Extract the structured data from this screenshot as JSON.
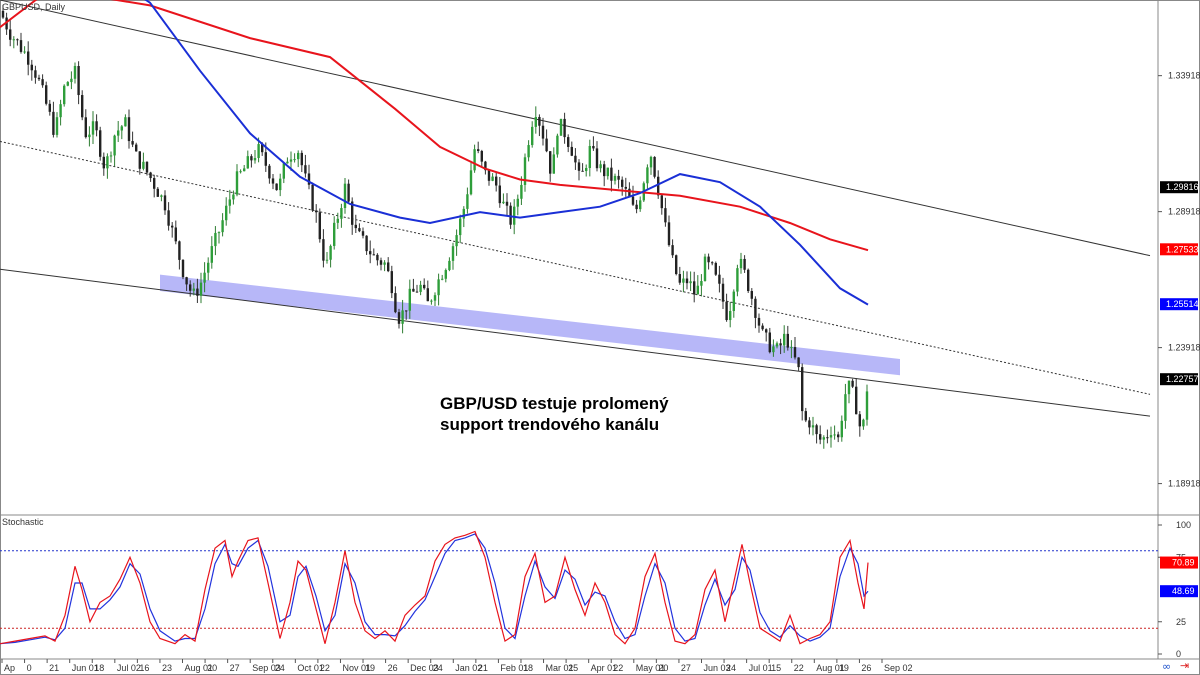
{
  "chart_data": {
    "type": "candlestick",
    "title": "GBPUSD, Daily",
    "annotation": [
      "GBP/USD testuje prolomený",
      "support trendového kanálu"
    ],
    "y_ticks": [
      1.33918,
      1.28918,
      1.23918,
      1.18918
    ],
    "price_badges": [
      {
        "value": "1.29816",
        "color": "#000000"
      },
      {
        "value": "1.27533",
        "color": "#ff0000"
      },
      {
        "value": "1.25514",
        "color": "#0000ff"
      },
      {
        "value": "1.22757",
        "color": "#000000"
      }
    ],
    "x_labels": [
      "Ap",
      "0",
      "21",
      "Jun 01",
      "18",
      "Jul 02",
      "16",
      "23",
      "Aug 01",
      "20",
      "27",
      "Sep 03",
      "24",
      "Oct 01",
      "22",
      "Nov 01",
      "19",
      "26",
      "Dec 03",
      "24",
      "Jan 02",
      "21",
      "Feb 01",
      "18",
      "Mar 01",
      "25",
      "Apr 01",
      "22",
      "May 01",
      "20",
      "27",
      "Jun 03",
      "24",
      "Jul 01",
      "15",
      "22",
      "Aug 01",
      "19",
      "26",
      "Sep 02"
    ],
    "close_path": [
      [
        0,
        1.363
      ],
      [
        10,
        1.355
      ],
      [
        20,
        1.35
      ],
      [
        30,
        1.345
      ],
      [
        38,
        1.338
      ],
      [
        45,
        1.33
      ],
      [
        55,
        1.318
      ],
      [
        65,
        1.336
      ],
      [
        75,
        1.34
      ],
      [
        85,
        1.318
      ],
      [
        95,
        1.32
      ],
      [
        105,
        1.305
      ],
      [
        115,
        1.318
      ],
      [
        125,
        1.322
      ],
      [
        135,
        1.31
      ],
      [
        150,
        1.302
      ],
      [
        165,
        1.292
      ],
      [
        175,
        1.278
      ],
      [
        185,
        1.265
      ],
      [
        193,
        1.258
      ],
      [
        200,
        1.262
      ],
      [
        212,
        1.275
      ],
      [
        222,
        1.285
      ],
      [
        235,
        1.3
      ],
      [
        250,
        1.308
      ],
      [
        258,
        1.312
      ],
      [
        268,
        1.305
      ],
      [
        278,
        1.297
      ],
      [
        288,
        1.31
      ],
      [
        298,
        1.312
      ],
      [
        306,
        1.3
      ],
      [
        316,
        1.288
      ],
      [
        326,
        1.268
      ],
      [
        334,
        1.282
      ],
      [
        345,
        1.298
      ],
      [
        355,
        1.282
      ],
      [
        365,
        1.277
      ],
      [
        375,
        1.272
      ],
      [
        385,
        1.27
      ],
      [
        392,
        1.262
      ],
      [
        398,
        1.25
      ],
      [
        403,
        1.252
      ],
      [
        410,
        1.258
      ],
      [
        420,
        1.262
      ],
      [
        428,
        1.255
      ],
      [
        436,
        1.262
      ],
      [
        446,
        1.27
      ],
      [
        456,
        1.28
      ],
      [
        465,
        1.292
      ],
      [
        475,
        1.313
      ],
      [
        485,
        1.303
      ],
      [
        495,
        1.3
      ],
      [
        505,
        1.29
      ],
      [
        512,
        1.285
      ],
      [
        520,
        1.298
      ],
      [
        528,
        1.315
      ],
      [
        535,
        1.328
      ],
      [
        545,
        1.315
      ],
      [
        552,
        1.302
      ],
      [
        558,
        1.322
      ],
      [
        565,
        1.318
      ],
      [
        572,
        1.312
      ],
      [
        580,
        1.3
      ],
      [
        590,
        1.312
      ],
      [
        600,
        1.305
      ],
      [
        610,
        1.302
      ],
      [
        618,
        1.3
      ],
      [
        628,
        1.295
      ],
      [
        635,
        1.288
      ],
      [
        642,
        1.298
      ],
      [
        650,
        1.312
      ],
      [
        658,
        1.298
      ],
      [
        666,
        1.282
      ],
      [
        673,
        1.27
      ],
      [
        680,
        1.262
      ],
      [
        688,
        1.264
      ],
      [
        696,
        1.258
      ],
      [
        704,
        1.27
      ],
      [
        712,
        1.268
      ],
      [
        720,
        1.26
      ],
      [
        728,
        1.25
      ],
      [
        738,
        1.272
      ],
      [
        746,
        1.265
      ],
      [
        754,
        1.255
      ],
      [
        762,
        1.244
      ],
      [
        770,
        1.24
      ],
      [
        778,
        1.238
      ],
      [
        786,
        1.244
      ],
      [
        792,
        1.236
      ],
      [
        798,
        1.233
      ],
      [
        803,
        1.212
      ],
      [
        810,
        1.212
      ],
      [
        818,
        1.205
      ],
      [
        825,
        1.206
      ],
      [
        832,
        1.21
      ],
      [
        838,
        1.205
      ],
      [
        845,
        1.222
      ],
      [
        850,
        1.225
      ],
      [
        856,
        1.218
      ],
      [
        862,
        1.206
      ],
      [
        868,
        1.228
      ]
    ],
    "ma_200_red": [
      [
        0,
        1.357
      ],
      [
        50,
        1.371
      ],
      [
        150,
        1.365
      ],
      [
        250,
        1.353
      ],
      [
        330,
        1.346
      ],
      [
        395,
        1.327
      ],
      [
        440,
        1.313
      ],
      [
        485,
        1.305
      ],
      [
        520,
        1.301
      ],
      [
        560,
        1.299
      ],
      [
        620,
        1.297
      ],
      [
        680,
        1.295
      ],
      [
        740,
        1.291
      ],
      [
        790,
        1.285
      ],
      [
        830,
        1.279
      ],
      [
        868,
        1.275
      ]
    ],
    "ma_100_blue": [
      [
        110,
        1.376
      ],
      [
        150,
        1.366
      ],
      [
        200,
        1.341
      ],
      [
        250,
        1.318
      ],
      [
        300,
        1.302
      ],
      [
        350,
        1.292
      ],
      [
        400,
        1.287
      ],
      [
        430,
        1.285
      ],
      [
        480,
        1.289
      ],
      [
        520,
        1.287
      ],
      [
        560,
        1.289
      ],
      [
        600,
        1.291
      ],
      [
        640,
        1.296
      ],
      [
        680,
        1.303
      ],
      [
        720,
        1.3
      ],
      [
        760,
        1.291
      ],
      [
        800,
        1.277
      ],
      [
        840,
        1.261
      ],
      [
        868,
        1.255
      ]
    ],
    "channel": {
      "upper": [
        [
          0,
          1.367
        ],
        [
          1150,
          1.273
        ]
      ],
      "middle": [
        [
          0,
          1.315
        ],
        [
          1150,
          1.222
        ]
      ],
      "lower": [
        [
          0,
          1.268
        ],
        [
          1150,
          1.214
        ]
      ]
    },
    "support_band": {
      "x": [
        160,
        900
      ],
      "top": [
        1.266,
        1.235
      ],
      "bottom": [
        1.26,
        1.229
      ]
    },
    "stochastic": {
      "label": "Stochastic",
      "y_ticks": [
        100,
        75,
        25,
        0
      ],
      "levels": [
        80,
        20
      ],
      "badges": [
        {
          "value": "70.89",
          "color": "#ff0000"
        },
        {
          "value": "48.69",
          "color": "#0000ff"
        }
      ],
      "k_red": [
        [
          0,
          8
        ],
        [
          15,
          10
        ],
        [
          30,
          12
        ],
        [
          45,
          14
        ],
        [
          55,
          10
        ],
        [
          65,
          30
        ],
        [
          75,
          68
        ],
        [
          82,
          50
        ],
        [
          90,
          25
        ],
        [
          100,
          40
        ],
        [
          110,
          45
        ],
        [
          120,
          58
        ],
        [
          130,
          75
        ],
        [
          140,
          55
        ],
        [
          150,
          25
        ],
        [
          160,
          12
        ],
        [
          175,
          8
        ],
        [
          185,
          15
        ],
        [
          195,
          10
        ],
        [
          205,
          50
        ],
        [
          215,
          82
        ],
        [
          225,
          88
        ],
        [
          232,
          60
        ],
        [
          238,
          72
        ],
        [
          248,
          88
        ],
        [
          258,
          90
        ],
        [
          268,
          55
        ],
        [
          280,
          12
        ],
        [
          290,
          40
        ],
        [
          298,
          72
        ],
        [
          306,
          65
        ],
        [
          316,
          35
        ],
        [
          325,
          8
        ],
        [
          335,
          40
        ],
        [
          345,
          80
        ],
        [
          355,
          40
        ],
        [
          365,
          18
        ],
        [
          375,
          12
        ],
        [
          385,
          18
        ],
        [
          395,
          10
        ],
        [
          405,
          30
        ],
        [
          415,
          38
        ],
        [
          425,
          45
        ],
        [
          435,
          72
        ],
        [
          445,
          85
        ],
        [
          455,
          90
        ],
        [
          465,
          92
        ],
        [
          475,
          95
        ],
        [
          485,
          75
        ],
        [
          495,
          40
        ],
        [
          505,
          10
        ],
        [
          515,
          15
        ],
        [
          525,
          60
        ],
        [
          535,
          78
        ],
        [
          545,
          40
        ],
        [
          555,
          45
        ],
        [
          565,
          75
        ],
        [
          575,
          50
        ],
        [
          585,
          30
        ],
        [
          595,
          55
        ],
        [
          605,
          40
        ],
        [
          615,
          15
        ],
        [
          625,
          8
        ],
        [
          635,
          20
        ],
        [
          645,
          60
        ],
        [
          655,
          78
        ],
        [
          665,
          40
        ],
        [
          675,
          10
        ],
        [
          685,
          8
        ],
        [
          695,
          15
        ],
        [
          705,
          50
        ],
        [
          715,
          65
        ],
        [
          725,
          25
        ],
        [
          735,
          60
        ],
        [
          742,
          85
        ],
        [
          750,
          55
        ],
        [
          760,
          20
        ],
        [
          770,
          15
        ],
        [
          780,
          10
        ],
        [
          790,
          30
        ],
        [
          800,
          8
        ],
        [
          810,
          12
        ],
        [
          820,
          15
        ],
        [
          830,
          25
        ],
        [
          840,
          75
        ],
        [
          850,
          88
        ],
        [
          858,
          55
        ],
        [
          864,
          35
        ],
        [
          868,
          70.89
        ]
      ],
      "d_blue": [
        [
          0,
          8
        ],
        [
          15,
          9
        ],
        [
          30,
          11
        ],
        [
          45,
          13
        ],
        [
          55,
          11
        ],
        [
          65,
          20
        ],
        [
          75,
          55
        ],
        [
          82,
          55
        ],
        [
          90,
          35
        ],
        [
          100,
          35
        ],
        [
          110,
          42
        ],
        [
          120,
          52
        ],
        [
          130,
          70
        ],
        [
          140,
          62
        ],
        [
          150,
          35
        ],
        [
          160,
          18
        ],
        [
          175,
          10
        ],
        [
          185,
          12
        ],
        [
          195,
          12
        ],
        [
          205,
          35
        ],
        [
          215,
          70
        ],
        [
          225,
          85
        ],
        [
          232,
          70
        ],
        [
          238,
          68
        ],
        [
          248,
          82
        ],
        [
          258,
          88
        ],
        [
          268,
          68
        ],
        [
          280,
          25
        ],
        [
          290,
          30
        ],
        [
          298,
          60
        ],
        [
          306,
          68
        ],
        [
          316,
          45
        ],
        [
          325,
          18
        ],
        [
          335,
          30
        ],
        [
          345,
          70
        ],
        [
          355,
          55
        ],
        [
          365,
          25
        ],
        [
          375,
          15
        ],
        [
          385,
          15
        ],
        [
          395,
          14
        ],
        [
          405,
          22
        ],
        [
          415,
          33
        ],
        [
          425,
          42
        ],
        [
          435,
          60
        ],
        [
          445,
          78
        ],
        [
          455,
          88
        ],
        [
          465,
          90
        ],
        [
          475,
          93
        ],
        [
          485,
          82
        ],
        [
          495,
          55
        ],
        [
          505,
          20
        ],
        [
          515,
          12
        ],
        [
          525,
          45
        ],
        [
          535,
          72
        ],
        [
          545,
          52
        ],
        [
          555,
          43
        ],
        [
          565,
          65
        ],
        [
          575,
          58
        ],
        [
          585,
          38
        ],
        [
          595,
          48
        ],
        [
          605,
          45
        ],
        [
          615,
          25
        ],
        [
          625,
          12
        ],
        [
          635,
          15
        ],
        [
          645,
          45
        ],
        [
          655,
          70
        ],
        [
          665,
          55
        ],
        [
          675,
          20
        ],
        [
          685,
          10
        ],
        [
          695,
          12
        ],
        [
          705,
          38
        ],
        [
          715,
          58
        ],
        [
          725,
          38
        ],
        [
          735,
          50
        ],
        [
          742,
          75
        ],
        [
          750,
          65
        ],
        [
          760,
          32
        ],
        [
          770,
          18
        ],
        [
          780,
          13
        ],
        [
          790,
          22
        ],
        [
          800,
          14
        ],
        [
          810,
          10
        ],
        [
          820,
          13
        ],
        [
          830,
          20
        ],
        [
          840,
          60
        ],
        [
          850,
          82
        ],
        [
          858,
          70
        ],
        [
          864,
          45
        ],
        [
          868,
          48.69
        ]
      ]
    }
  }
}
